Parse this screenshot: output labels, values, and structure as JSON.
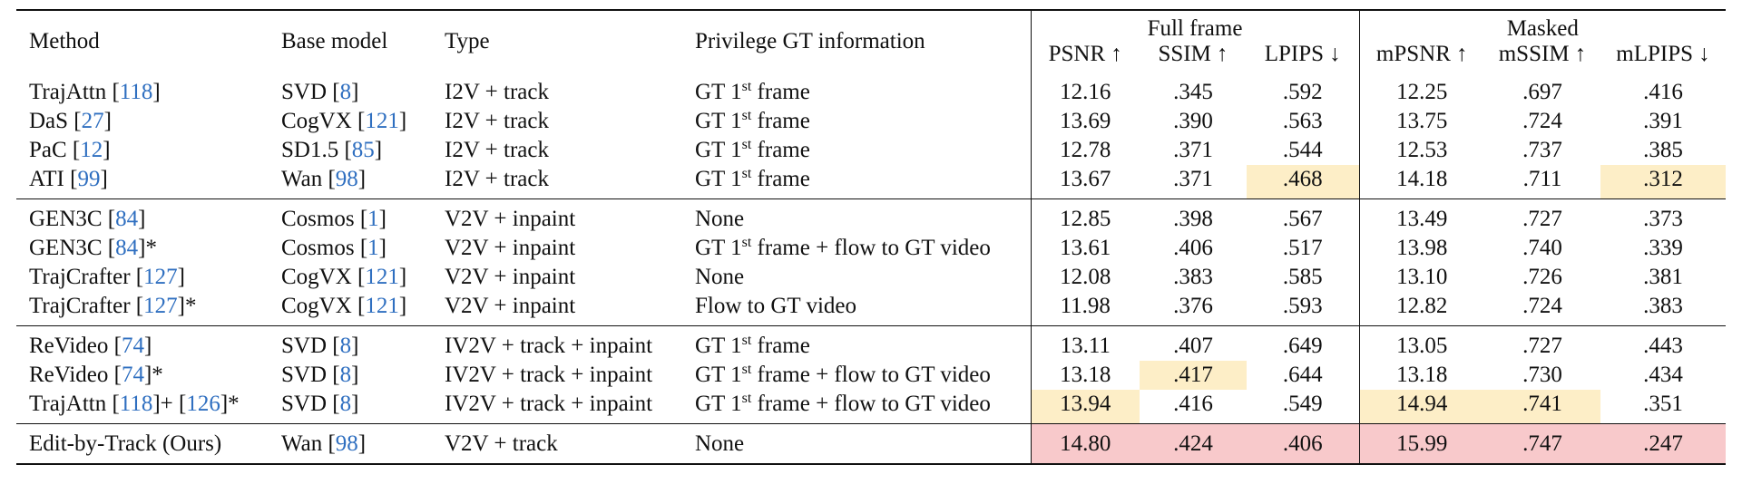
{
  "header": {
    "columns": [
      "Method",
      "Base model",
      "Type",
      "Privilege GT information"
    ],
    "group_full": "Full frame",
    "group_masked": "Masked",
    "metrics_full": [
      "PSNR ↑",
      "SSIM ↑",
      "LPIPS ↓"
    ],
    "metrics_masked": [
      "mPSNR ↑",
      "mSSIM ↑",
      "mLPIPS ↓"
    ]
  },
  "colors": {
    "cite": "#2f6fc0",
    "highlight_second": "#fdeec7",
    "highlight_best": "#f8c9cb"
  },
  "groups": [
    {
      "rows": [
        {
          "method": "TrajAttn [",
          "method_cite": "118",
          "method_tail": "]",
          "base": "SVD [",
          "base_cite": "8",
          "type": "I2V + track",
          "gt_pre": "GT 1",
          "gt_sup": "st",
          "gt_post": " frame",
          "vals": [
            "12.16",
            ".345",
            ".592",
            "12.25",
            ".697",
            ".416"
          ]
        },
        {
          "method": "DaS [",
          "method_cite": "27",
          "method_tail": "]",
          "base": "CogVX [",
          "base_cite": "121",
          "type": "I2V + track",
          "gt_pre": "GT 1",
          "gt_sup": "st",
          "gt_post": " frame",
          "vals": [
            "13.69",
            ".390",
            ".563",
            "13.75",
            ".724",
            ".391"
          ]
        },
        {
          "method": "PaC [",
          "method_cite": "12",
          "method_tail": "]",
          "base": "SD1.5 [",
          "base_cite": "85",
          "type": "I2V + track",
          "gt_pre": "GT 1",
          "gt_sup": "st",
          "gt_post": " frame",
          "vals": [
            "12.78",
            ".371",
            ".544",
            "12.53",
            ".737",
            ".385"
          ]
        },
        {
          "method": "ATI [",
          "method_cite": "99",
          "method_tail": "]",
          "base": "Wan [",
          "base_cite": "98",
          "type": "I2V + track",
          "gt_pre": "GT 1",
          "gt_sup": "st",
          "gt_post": " frame",
          "vals": [
            "13.67",
            ".371",
            ".468",
            "14.18",
            ".711",
            ".312"
          ]
        }
      ]
    },
    {
      "rows": [
        {
          "method": "GEN3C [",
          "method_cite": "84",
          "method_tail": "]",
          "base": "Cosmos [",
          "base_cite": "1",
          "type": "V2V + inpaint",
          "gt_pre": "None",
          "gt_sup": "",
          "gt_post": "",
          "vals": [
            "12.85",
            ".398",
            ".567",
            "13.49",
            ".727",
            ".373"
          ]
        },
        {
          "method": "GEN3C [",
          "method_cite": "84",
          "method_tail": "]*",
          "base": "Cosmos [",
          "base_cite": "1",
          "type": "V2V + inpaint",
          "gt_pre": "GT 1",
          "gt_sup": "st",
          "gt_post": " frame + flow to GT video",
          "vals": [
            "13.61",
            ".406",
            ".517",
            "13.98",
            ".740",
            ".339"
          ]
        },
        {
          "method": "TrajCrafter [",
          "method_cite": "127",
          "method_tail": "]",
          "base": "CogVX [",
          "base_cite": "121",
          "type": "V2V + inpaint",
          "gt_pre": "None",
          "gt_sup": "",
          "gt_post": "",
          "vals": [
            "12.08",
            ".383",
            ".585",
            "13.10",
            ".726",
            ".381"
          ]
        },
        {
          "method": "TrajCrafter [",
          "method_cite": "127",
          "method_tail": "]*",
          "base": "CogVX [",
          "base_cite": "121",
          "type": "V2V + inpaint",
          "gt_pre": "Flow to GT video",
          "gt_sup": "",
          "gt_post": "",
          "vals": [
            "11.98",
            ".376",
            ".593",
            "12.82",
            ".724",
            ".383"
          ]
        }
      ]
    },
    {
      "rows": [
        {
          "method": "ReVideo [",
          "method_cite": "74",
          "method_tail": "]",
          "base": "SVD [",
          "base_cite": "8",
          "type": "IV2V + track + inpaint",
          "gt_pre": "GT 1",
          "gt_sup": "st",
          "gt_post": " frame",
          "vals": [
            "13.11",
            ".407",
            ".649",
            "13.05",
            ".727",
            ".443"
          ]
        },
        {
          "method": "ReVideo [",
          "method_cite": "74",
          "method_tail": "]*",
          "base": "SVD [",
          "base_cite": "8",
          "type": "IV2V + track + inpaint",
          "gt_pre": "GT 1",
          "gt_sup": "st",
          "gt_post": " frame + flow to GT video",
          "vals": [
            "13.18",
            ".417",
            ".644",
            "13.18",
            ".730",
            ".434"
          ]
        },
        {
          "method": "TrajAttn [",
          "method_cite": "118",
          "method_tail": "]+ [",
          "method_cite2": "126",
          "method_tail2": "]*",
          "base": "SVD [",
          "base_cite": "8",
          "type": "IV2V + track + inpaint",
          "gt_pre": "GT 1",
          "gt_sup": "st",
          "gt_post": " frame + flow to GT video",
          "vals": [
            "13.94",
            ".416",
            ".549",
            "14.94",
            ".741",
            ".351"
          ]
        }
      ]
    },
    {
      "rows": [
        {
          "method": "Edit-by-Track (Ours)",
          "method_cite": "",
          "method_tail": "",
          "base": "Wan [",
          "base_cite": "98",
          "type": "V2V + track",
          "gt_pre": "None",
          "gt_sup": "",
          "gt_post": "",
          "vals": [
            "14.80",
            ".424",
            ".406",
            "15.99",
            ".747",
            ".247"
          ]
        }
      ]
    }
  ],
  "highlights": {
    "second": [
      [
        0,
        3,
        2
      ],
      [
        0,
        3,
        5
      ],
      [
        2,
        1,
        1
      ],
      [
        2,
        2,
        0
      ],
      [
        2,
        2,
        3
      ],
      [
        2,
        2,
        4
      ]
    ],
    "best": [
      [
        3,
        0,
        0
      ],
      [
        3,
        0,
        1
      ],
      [
        3,
        0,
        2
      ],
      [
        3,
        0,
        3
      ],
      [
        3,
        0,
        4
      ],
      [
        3,
        0,
        5
      ]
    ]
  }
}
